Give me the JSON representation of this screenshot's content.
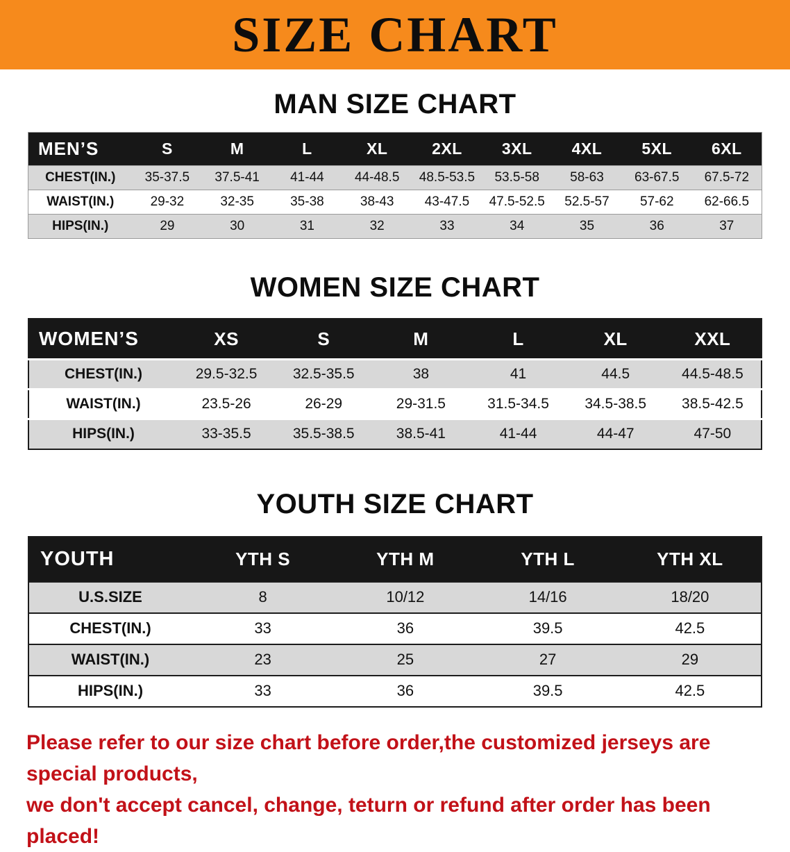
{
  "colors": {
    "banner_bg": "#f68a1c",
    "table_header_bg": "#171717",
    "row_stripe_bg": "#d8d8d8",
    "notice_text": "#c21118"
  },
  "banner": {
    "title": "SIZE CHART"
  },
  "sections": [
    {
      "heading": "MAN SIZE CHART",
      "table": {
        "corner": "MEN’S",
        "columns": [
          "S",
          "M",
          "L",
          "XL",
          "2XL",
          "3XL",
          "4XL",
          "5XL",
          "6XL"
        ],
        "rows": [
          {
            "label": "CHEST(IN.)",
            "values": [
              "35-37.5",
              "37.5-41",
              "41-44",
              "44-48.5",
              "48.5-53.5",
              "53.5-58",
              "58-63",
              "63-67.5",
              "67.5-72"
            ]
          },
          {
            "label": "WAIST(IN.)",
            "values": [
              "29-32",
              "32-35",
              "35-38",
              "38-43",
              "43-47.5",
              "47.5-52.5",
              "52.5-57",
              "57-62",
              "62-66.5"
            ]
          },
          {
            "label": "HIPS(IN.)",
            "values": [
              "29",
              "30",
              "31",
              "32",
              "33",
              "34",
              "35",
              "36",
              "37"
            ]
          }
        ]
      }
    },
    {
      "heading": "WOMEN SIZE CHART",
      "table": {
        "corner": "WOMEN’S",
        "columns": [
          "XS",
          "S",
          "M",
          "L",
          "XL",
          "XXL"
        ],
        "rows": [
          {
            "label": "CHEST(IN.)",
            "values": [
              "29.5-32.5",
              "32.5-35.5",
              "38",
              "41",
              "44.5",
              "44.5-48.5"
            ]
          },
          {
            "label": "WAIST(IN.)",
            "values": [
              "23.5-26",
              "26-29",
              "29-31.5",
              "31.5-34.5",
              "34.5-38.5",
              "38.5-42.5"
            ]
          },
          {
            "label": "HIPS(IN.)",
            "values": [
              "33-35.5",
              "35.5-38.5",
              "38.5-41",
              "41-44",
              "44-47",
              "47-50"
            ]
          }
        ]
      }
    },
    {
      "heading": "YOUTH SIZE CHART",
      "table": {
        "corner": "YOUTH",
        "columns": [
          "YTH S",
          "YTH M",
          "YTH L",
          "YTH XL"
        ],
        "rows": [
          {
            "label": "U.S.SIZE",
            "values": [
              "8",
              "10/12",
              "14/16",
              "18/20"
            ]
          },
          {
            "label": "CHEST(IN.)",
            "values": [
              "33",
              "36",
              "39.5",
              "42.5"
            ]
          },
          {
            "label": "WAIST(IN.)",
            "values": [
              "23",
              "25",
              "27",
              "29"
            ]
          },
          {
            "label": "HIPS(IN.)",
            "values": [
              "33",
              "36",
              "39.5",
              "42.5"
            ]
          }
        ]
      }
    }
  ],
  "footer": {
    "line1": "Please refer to our size chart before order,the customized jerseys are special products,",
    "line2": "we don't accept cancel, change, teturn or refund after order has been placed!"
  }
}
